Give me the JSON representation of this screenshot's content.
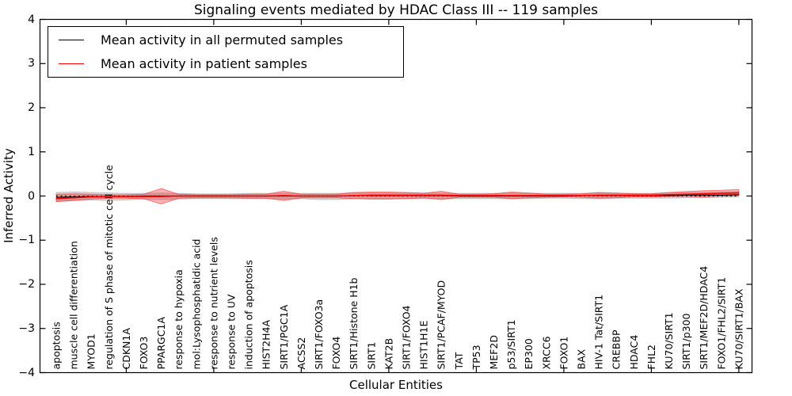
{
  "title": "Signaling events mediated by HDAC Class III -- 119 samples",
  "legend": {
    "items": [
      {
        "label": "Mean activity in all permuted samples",
        "color": "#000000"
      },
      {
        "label": "Mean activity in patient samples",
        "color": "#ff0000"
      }
    ]
  },
  "axes": {
    "x_label": "Cellular Entities",
    "y_label": "Inferred Activity",
    "y_tick_labels": [
      "4",
      "3",
      "2",
      "1",
      "0",
      "−1",
      "−2",
      "−3",
      "−4"
    ],
    "y_tick_values": [
      4,
      3,
      2,
      1,
      0,
      -1,
      -2,
      -3,
      -4
    ],
    "x_major_tick_indices": [
      5,
      10,
      15,
      20,
      25,
      30,
      35,
      40
    ]
  },
  "chart_data": {
    "type": "line",
    "title": "Signaling events mediated by HDAC Class III -- 119 samples",
    "xlabel": "Cellular Entities",
    "ylabel": "Inferred Activity",
    "ylim": [
      -4,
      4
    ],
    "grid": false,
    "legend_position": "upper-left",
    "categories": [
      "apoptosis",
      "muscle cell differentiation",
      "MYOD1",
      "regulation of S phase of mitotic cell cycle",
      "CDKN1A",
      "FOXO3",
      "PPARGC1A",
      "response to hypoxia",
      "mol:Lysophosphatidic acid",
      "response to nutrient levels",
      "response to UV",
      "induction of apoptosis",
      "HIST2H4A",
      "SIRT1/PGC1A",
      "ACSS2",
      "SIRT1/FOXO3a",
      "FOXO4",
      "SIRT1/Histone H1b",
      "SIRT1",
      "KAT2B",
      "SIRT1/FOXO4",
      "HIST1H1E",
      "SIRT1/PCAF/MYOD",
      "TAT",
      "TP53",
      "MEF2D",
      "p53/SIRT1",
      "EP300",
      "XRCC6",
      "FOXO1",
      "BAX",
      "HIV-1 Tat/SIRT1",
      "CREBBP",
      "HDAC4",
      "FHL2",
      "KU70/SIRT1",
      "SIRT1/p300",
      "SIRT1/MEF2D/HDAC4",
      "FOXO1/FHL2/SIRT1",
      "KU70/SIRT1/BAX"
    ],
    "series": [
      {
        "name": "Mean activity in all permuted samples",
        "color": "#000000",
        "line_width": 1.2,
        "values": [
          -0.03,
          -0.02,
          -0.01,
          -0.01,
          -0.01,
          0,
          0,
          0,
          0,
          0,
          0,
          0,
          0,
          0,
          0,
          0,
          0,
          0.01,
          0.01,
          0.01,
          0.01,
          0.01,
          0.01,
          0,
          0,
          0,
          0,
          0,
          0,
          0,
          0.01,
          0.01,
          0.01,
          0.01,
          0.01,
          0.01,
          0.02,
          0.02,
          0.02,
          0.03
        ]
      },
      {
        "name": "Mean activity in patient samples",
        "color": "#ff0000",
        "line_width": 1.6,
        "values": [
          -0.06,
          -0.04,
          -0.02,
          -0.01,
          -0.01,
          -0.01,
          -0.01,
          0,
          0,
          0,
          0,
          0,
          0,
          0.01,
          0,
          0,
          0,
          0.01,
          0.02,
          0.02,
          0.02,
          0.02,
          0.02,
          0.01,
          0.01,
          0.01,
          0.01,
          0.01,
          0.01,
          0.01,
          0.01,
          0.02,
          0.02,
          0.02,
          0.02,
          0.03,
          0.04,
          0.05,
          0.06,
          0.07
        ]
      }
    ],
    "bands": [
      {
        "name": "permuted-samples-spread-band",
        "fill": "#787878",
        "fill_opacity": 0.28,
        "edge": "#000000",
        "edge_opacity": 0.18,
        "upper": [
          0.08,
          0.09,
          0.08,
          0.07,
          0.06,
          0.06,
          0.07,
          0.06,
          0.05,
          0.05,
          0.05,
          0.06,
          0.06,
          0.07,
          0.06,
          0.06,
          0.06,
          0.07,
          0.07,
          0.07,
          0.07,
          0.07,
          0.07,
          0.06,
          0.06,
          0.06,
          0.07,
          0.06,
          0.06,
          0.06,
          0.06,
          0.07,
          0.06,
          0.06,
          0.06,
          0.07,
          0.08,
          0.08,
          0.09,
          0.1
        ],
        "lower": [
          -0.12,
          -0.1,
          -0.09,
          -0.1,
          -0.09,
          -0.07,
          -0.08,
          -0.07,
          -0.06,
          -0.06,
          -0.06,
          -0.06,
          -0.06,
          -0.07,
          -0.06,
          -0.08,
          -0.08,
          -0.06,
          -0.06,
          -0.06,
          -0.06,
          -0.06,
          -0.06,
          -0.06,
          -0.06,
          -0.06,
          -0.06,
          -0.06,
          -0.05,
          -0.05,
          -0.06,
          -0.06,
          -0.05,
          -0.05,
          -0.05,
          -0.05,
          -0.04,
          -0.04,
          -0.03,
          -0.02
        ]
      },
      {
        "name": "patient-samples-spread-band",
        "fill": "#ff0000",
        "fill_opacity": 0.3,
        "edge": "#ff0000",
        "edge_opacity": 0.45,
        "upper": [
          0.04,
          0.05,
          0.04,
          0.03,
          0.03,
          0.04,
          0.17,
          0.04,
          0.03,
          0.03,
          0.03,
          0.04,
          0.04,
          0.11,
          0.04,
          0.04,
          0.04,
          0.08,
          0.09,
          0.09,
          0.08,
          0.06,
          0.11,
          0.04,
          0.04,
          0.05,
          0.09,
          0.07,
          0.04,
          0.04,
          0.05,
          0.08,
          0.07,
          0.05,
          0.05,
          0.08,
          0.1,
          0.12,
          0.13,
          0.15
        ],
        "lower": [
          -0.13,
          -0.1,
          -0.07,
          -0.05,
          -0.05,
          -0.06,
          -0.18,
          -0.05,
          -0.04,
          -0.04,
          -0.04,
          -0.05,
          -0.05,
          -0.1,
          -0.04,
          -0.04,
          -0.04,
          -0.06,
          -0.07,
          -0.07,
          -0.06,
          -0.04,
          -0.08,
          -0.03,
          -0.03,
          -0.03,
          -0.06,
          -0.04,
          -0.03,
          -0.02,
          -0.03,
          -0.05,
          -0.04,
          -0.02,
          -0.02,
          -0.01,
          -0.01,
          -0.02,
          0.0,
          0.01
        ]
      }
    ],
    "zero_reference_line": {
      "value": 0,
      "style": "dotted",
      "color": "#000000"
    }
  }
}
